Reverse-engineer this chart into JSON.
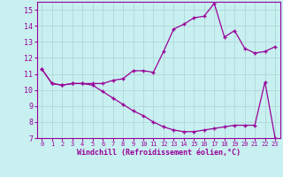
{
  "xlabel": "Windchill (Refroidissement éolien,°C)",
  "bg_color": "#c8f0f0",
  "grid_color": "#b0d8d8",
  "line_color": "#990099",
  "xlim": [
    -0.5,
    23.5
  ],
  "ylim": [
    7,
    15.5
  ],
  "xticks": [
    0,
    1,
    2,
    3,
    4,
    5,
    6,
    7,
    8,
    9,
    10,
    11,
    12,
    13,
    14,
    15,
    16,
    17,
    18,
    19,
    20,
    21,
    22,
    23
  ],
  "yticks": [
    7,
    8,
    9,
    10,
    11,
    12,
    13,
    14,
    15
  ],
  "line1_x": [
    0,
    1,
    2,
    3,
    4,
    5,
    6,
    7,
    8,
    9,
    10,
    11,
    12,
    13,
    14,
    15,
    16,
    17,
    18,
    19,
    20,
    21,
    22,
    23
  ],
  "line1_y": [
    11.3,
    10.4,
    10.3,
    10.4,
    10.4,
    10.4,
    10.4,
    10.6,
    10.7,
    11.2,
    11.2,
    11.1,
    12.4,
    13.8,
    14.1,
    14.5,
    14.6,
    15.4,
    13.3,
    13.7,
    12.6,
    12.3,
    12.4,
    12.7
  ],
  "line2_x": [
    0,
    1,
    2,
    3,
    4,
    5,
    6,
    7,
    8,
    9,
    10,
    11,
    12,
    13,
    14,
    15,
    16,
    17,
    18,
    19,
    20,
    21,
    22,
    23
  ],
  "line2_y": [
    11.3,
    10.4,
    10.3,
    10.4,
    10.4,
    10.3,
    9.9,
    9.5,
    9.1,
    8.7,
    8.4,
    8.0,
    7.7,
    7.5,
    7.4,
    7.4,
    7.5,
    7.6,
    7.7,
    7.8,
    7.8,
    7.8,
    10.5,
    7.0
  ]
}
